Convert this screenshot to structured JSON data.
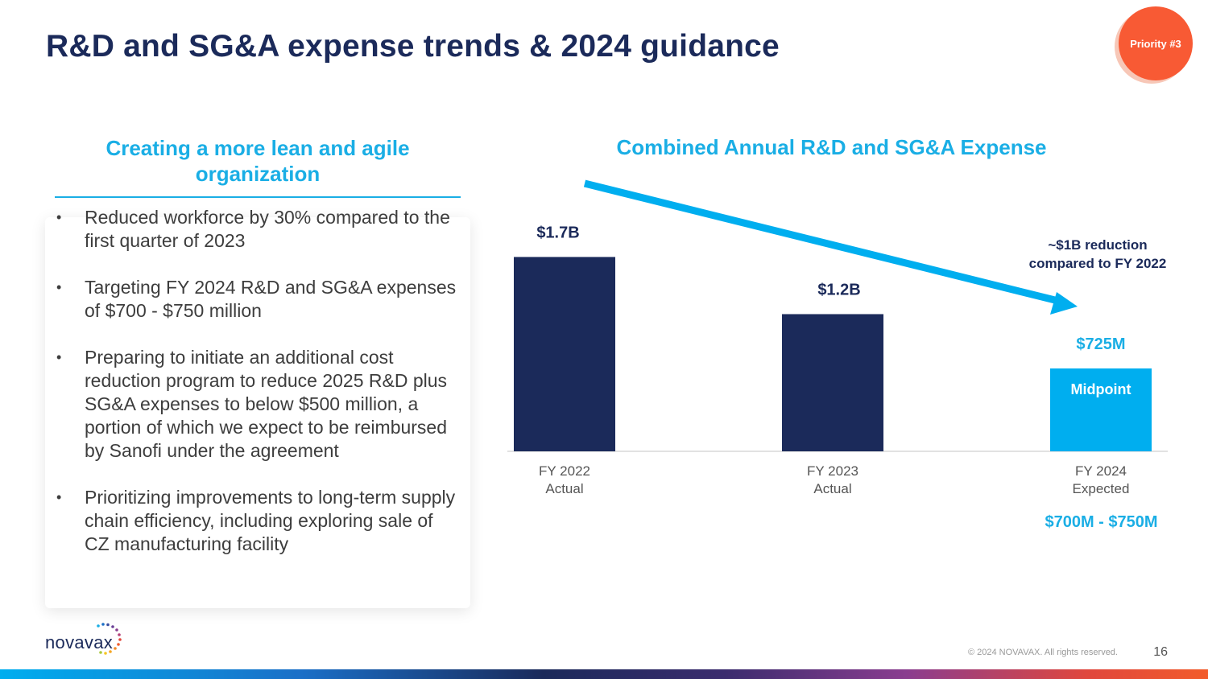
{
  "slide": {
    "title": "R&D and SG&A expense trends & 2024 guidance",
    "badge": "Priority #3",
    "page_number": "16",
    "copyright": "© 2024 NOVAVAX. All rights reserved.",
    "logo_text": "novavax"
  },
  "left_panel": {
    "heading": "Creating a more lean and agile organization",
    "bullets": [
      "Reduced workforce by 30% compared to the first quarter of 2023",
      "Targeting FY 2024 R&D and SG&A expenses of $700 - $750 million",
      "Preparing to initiate an additional cost reduction program to reduce 2025 R&D plus SG&A expenses to below $500 million, a portion of which we expect to be reimbursed by Sanofi under the agreement",
      "Prioritizing improvements to long-term supply chain efficiency, including exploring sale of CZ manufacturing facility"
    ]
  },
  "chart_data": {
    "type": "bar",
    "title": "Combined Annual R&D and SG&A Expense",
    "categories": [
      [
        "FY 2022",
        "Actual"
      ],
      [
        "FY 2023",
        "Actual"
      ],
      [
        "FY 2024",
        "Expected"
      ]
    ],
    "values": [
      1.7,
      1.2,
      0.725
    ],
    "units": "$B",
    "value_labels": [
      "$1.7B",
      "$1.2B",
      "$725M"
    ],
    "bar_inner_labels": [
      "",
      "",
      "Midpoint"
    ],
    "bar_colors": [
      "#1b2a5a",
      "#1b2a5a",
      "#00aeef"
    ],
    "label_colors": [
      "#1b2a5a",
      "#1b2a5a",
      "#1aaee5"
    ],
    "ylim": [
      0,
      1.9
    ],
    "grid": false,
    "annotations": {
      "trend_arrow": "down",
      "reduction_note": [
        "~$1B reduction",
        "compared to FY 2022"
      ],
      "range_note": "$700M - $750M"
    },
    "accent_color": "#00aeef"
  }
}
